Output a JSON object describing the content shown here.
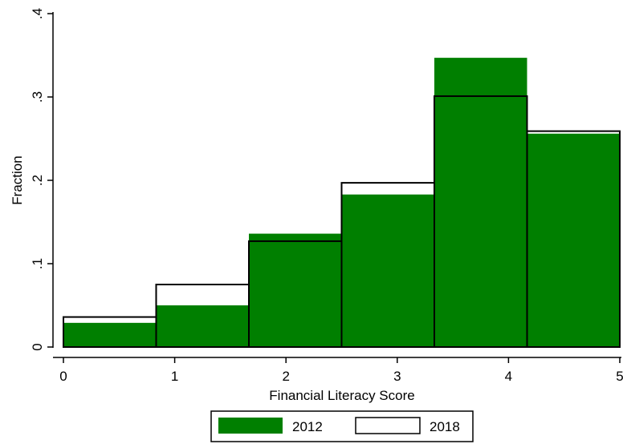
{
  "chart_data": {
    "type": "bar",
    "xlabel": "Financial Literacy Score",
    "ylabel": "Fraction",
    "xlim": [
      0,
      5
    ],
    "ylim": [
      0,
      0.4
    ],
    "xticks": [
      {
        "value": 0,
        "label": "0"
      },
      {
        "value": 1,
        "label": "1"
      },
      {
        "value": 2,
        "label": "2"
      },
      {
        "value": 3,
        "label": "3"
      },
      {
        "value": 4,
        "label": "4"
      },
      {
        "value": 5,
        "label": "5"
      }
    ],
    "yticks": [
      {
        "value": 0,
        "label": "0"
      },
      {
        "value": 0.1,
        "label": ".1"
      },
      {
        "value": 0.2,
        "label": ".2"
      },
      {
        "value": 0.3,
        "label": ".3"
      },
      {
        "value": 0.4,
        "label": ".4"
      }
    ],
    "bins": [
      [
        0,
        0.8333
      ],
      [
        0.8333,
        1.6667
      ],
      [
        1.6667,
        2.5
      ],
      [
        2.5,
        3.3333
      ],
      [
        3.3333,
        4.1667
      ],
      [
        4.1667,
        5
      ]
    ],
    "series": [
      {
        "name": "2012",
        "values": [
          0.029,
          0.05,
          0.136,
          0.183,
          0.347,
          0.256
        ],
        "fill": "#007F00",
        "stroke": "none"
      },
      {
        "name": "2018",
        "values": [
          0.036,
          0.075,
          0.127,
          0.197,
          0.301,
          0.259
        ],
        "fill": "none",
        "stroke": "#000000"
      }
    ],
    "legend_position": "bottom",
    "grid": false
  }
}
